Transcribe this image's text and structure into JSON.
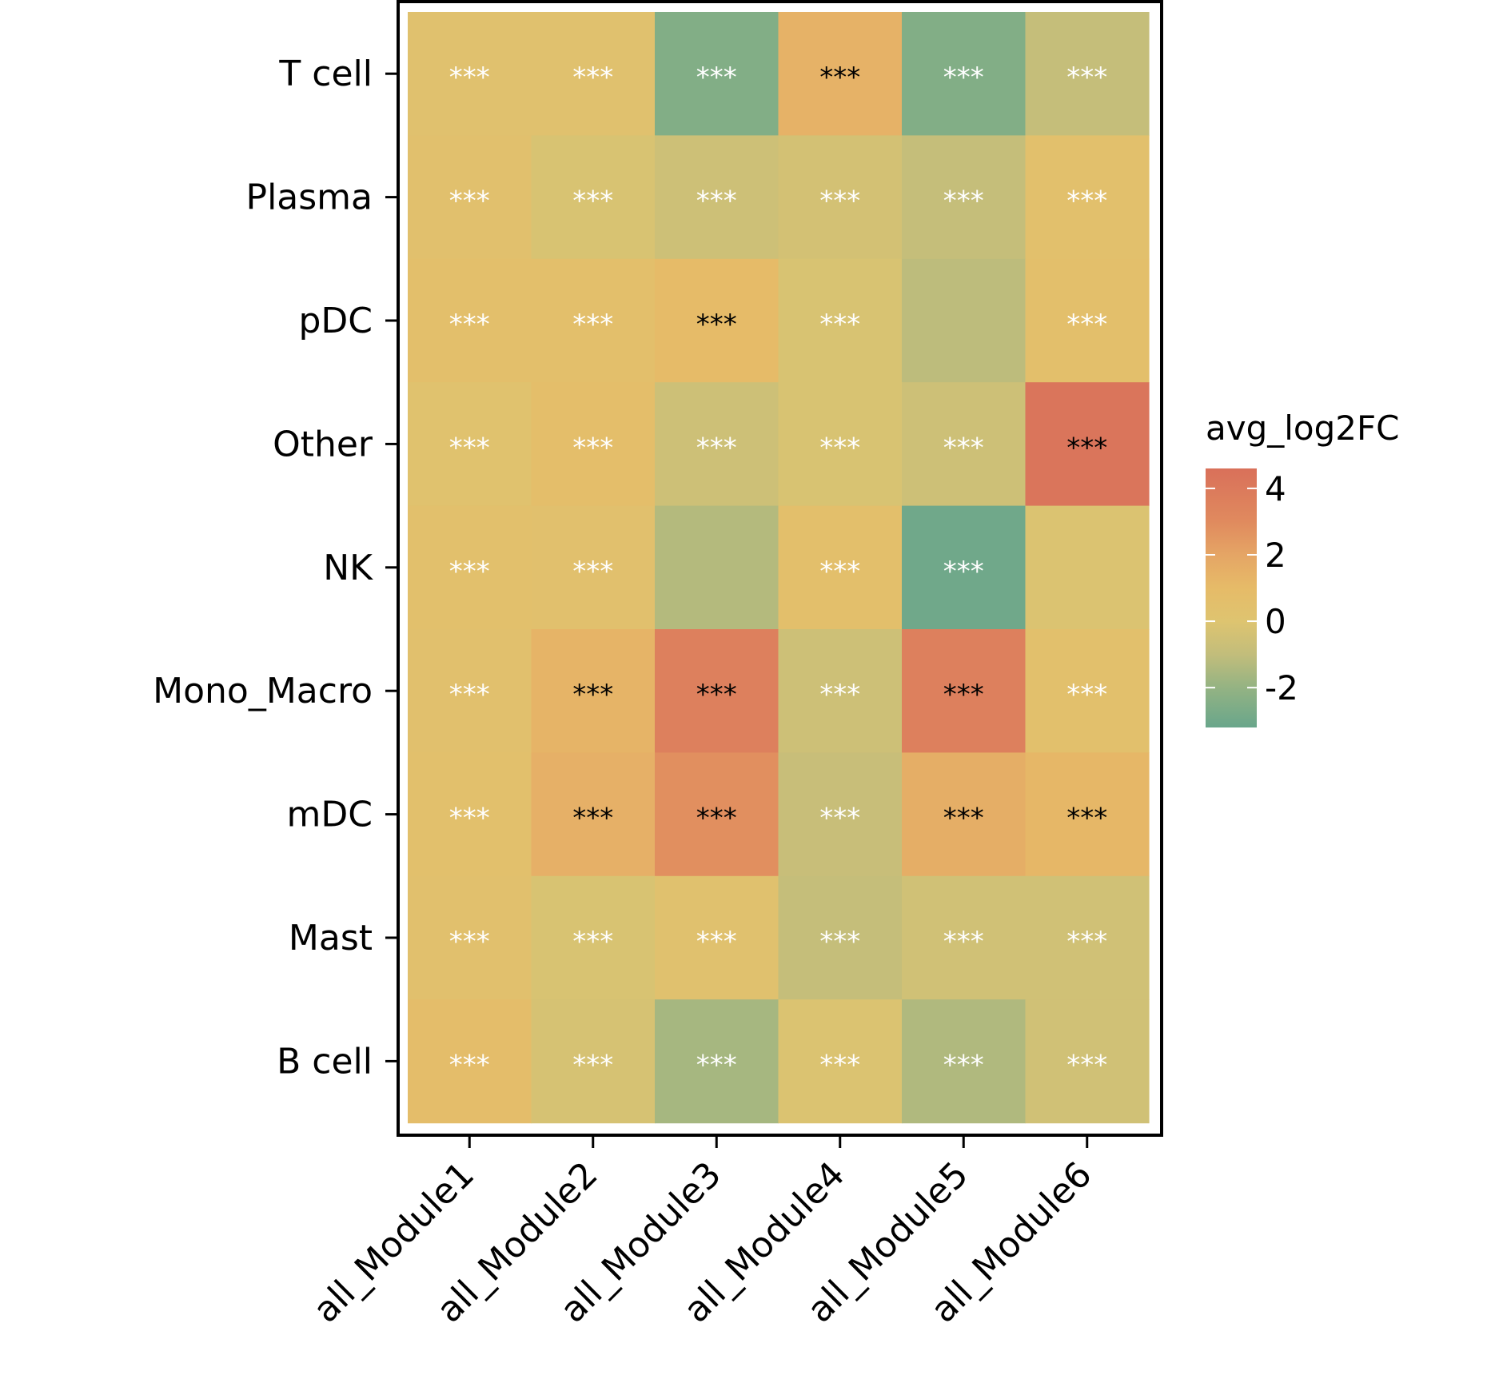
{
  "chart_data": {
    "type": "heatmap",
    "title": "",
    "xlabel": "",
    "ylabel": "",
    "x_categories": [
      "all_Module1",
      "all_Module2",
      "all_Module3",
      "all_Module4",
      "all_Module5",
      "all_Module6"
    ],
    "y_categories": [
      "T cell",
      "Plasma",
      "pDC",
      "Other",
      "NK",
      "Mono_Macro",
      "mDC",
      "Mast",
      "B cell"
    ],
    "values": [
      [
        0.3,
        0.3,
        -2.5,
        1.4,
        -2.5,
        -0.9
      ],
      [
        0.4,
        -0.2,
        -0.6,
        -0.4,
        -0.9,
        0.5
      ],
      [
        0.6,
        0.6,
        1.0,
        -0.2,
        -1.1,
        0.6
      ],
      [
        0.2,
        0.7,
        -0.6,
        -0.2,
        -0.6,
        4.3
      ],
      [
        0.5,
        0.4,
        -1.3,
        0.6,
        -3.0,
        -0.1
      ],
      [
        0.4,
        1.3,
        3.6,
        -0.6,
        3.6,
        0.5
      ],
      [
        0.5,
        1.5,
        2.8,
        -0.8,
        1.6,
        1.2
      ],
      [
        0.4,
        -0.2,
        0.3,
        -0.9,
        -0.5,
        -0.5
      ],
      [
        0.8,
        -0.3,
        -1.6,
        -0.1,
        -1.4,
        -0.5
      ]
    ],
    "significance": [
      [
        "***",
        "***",
        "***",
        "***",
        "***",
        "***"
      ],
      [
        "***",
        "***",
        "***",
        "***",
        "***",
        "***"
      ],
      [
        "***",
        "***",
        "***",
        "***",
        "",
        "***"
      ],
      [
        "***",
        "***",
        "***",
        "***",
        "***",
        "***"
      ],
      [
        "***",
        "***",
        "",
        "***",
        "***",
        ""
      ],
      [
        "***",
        "***",
        "***",
        "***",
        "***",
        "***"
      ],
      [
        "***",
        "***",
        "***",
        "***",
        "***",
        "***"
      ],
      [
        "***",
        "***",
        "***",
        "***",
        "***",
        "***"
      ],
      [
        "***",
        "***",
        "***",
        "***",
        "***",
        "***"
      ]
    ],
    "label_threshold": 1.0,
    "label_color_high": "#000000",
    "label_color_low": "#ffffff",
    "colorbar": {
      "title": "avg_log2FC",
      "range": [
        -3.2,
        4.6
      ],
      "ticks": [
        4,
        2,
        0,
        -2
      ],
      "tick_labels": [
        "4",
        "2",
        "0",
        "-2"
      ],
      "colors": [
        {
          "v": -3.2,
          "c": "#69a68b"
        },
        {
          "v": -2.0,
          "c": "#94b383"
        },
        {
          "v": -1.0,
          "c": "#c2bd7b"
        },
        {
          "v": 0.0,
          "c": "#dec470"
        },
        {
          "v": 1.0,
          "c": "#e6bb68"
        },
        {
          "v": 2.0,
          "c": "#e5a565"
        },
        {
          "v": 3.0,
          "c": "#e08a5e"
        },
        {
          "v": 4.6,
          "c": "#d9705a"
        }
      ]
    },
    "grid": false,
    "legend_position": "right"
  }
}
